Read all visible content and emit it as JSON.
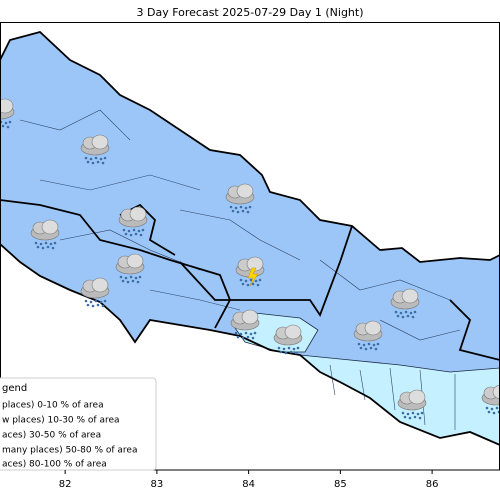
{
  "map": {
    "title": "3 Day Forecast 2025-07-29 Day 1 (Night)",
    "xlim": [
      81.29,
      86.74
    ],
    "xticks": [
      82,
      83,
      84,
      85,
      86
    ],
    "legend": {
      "title": "gend",
      "items": [
        "places)  0-10 % of area",
        "w places) 10-30 % of area",
        "aces) 30-50  % of area",
        "many places) 50-80 % of area",
        "aces) 80-100 % of area"
      ]
    }
  }
}
